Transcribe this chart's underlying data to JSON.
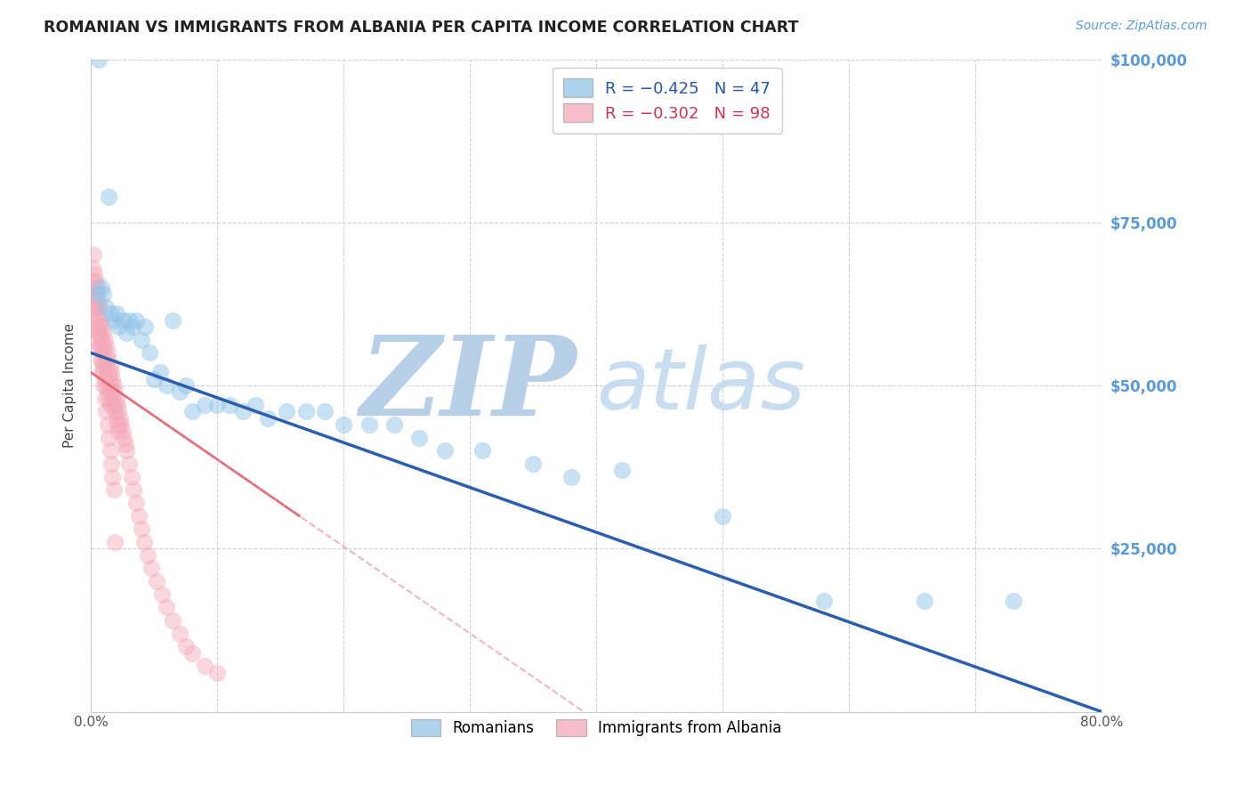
{
  "title": "ROMANIAN VS IMMIGRANTS FROM ALBANIA PER CAPITA INCOME CORRELATION CHART",
  "source": "Source: ZipAtlas.com",
  "ylabel": "Per Capita Income",
  "xlim": [
    0,
    0.8
  ],
  "ylim": [
    0,
    100000
  ],
  "yticks": [
    0,
    25000,
    50000,
    75000,
    100000
  ],
  "ytick_labels": [
    "",
    "$25,000",
    "$50,000",
    "$75,000",
    "$100,000"
  ],
  "xtick_labels": [
    "0.0%",
    "",
    "",
    "",
    "",
    "",
    "",
    "",
    "80.0%"
  ],
  "legend_r_blue": "R = −0.425",
  "legend_n_blue": "N = 47",
  "legend_r_pink": "R = −0.302",
  "legend_n_pink": "N = 98",
  "blue_color": "#92c5e8",
  "pink_color": "#f4a8b8",
  "blue_line_color": "#2b5fad",
  "pink_line_color": "#e06070",
  "grid_color": "#cccccc",
  "background_color": "#ffffff",
  "title_color": "#222222",
  "right_ytick_color": "#5b9bd5",
  "watermark_color": "#c8ddf0",
  "blue_points_x": [
    0.006,
    0.014,
    0.005,
    0.008,
    0.01,
    0.012,
    0.016,
    0.018,
    0.02,
    0.022,
    0.025,
    0.028,
    0.03,
    0.033,
    0.036,
    0.04,
    0.043,
    0.046,
    0.05,
    0.055,
    0.06,
    0.065,
    0.07,
    0.075,
    0.08,
    0.09,
    0.1,
    0.11,
    0.12,
    0.13,
    0.14,
    0.155,
    0.17,
    0.185,
    0.2,
    0.22,
    0.24,
    0.26,
    0.28,
    0.31,
    0.35,
    0.38,
    0.42,
    0.5,
    0.58,
    0.66,
    0.73
  ],
  "blue_points_y": [
    100000,
    79000,
    64000,
    65000,
    64000,
    62000,
    61000,
    60000,
    61000,
    59000,
    60000,
    58000,
    60000,
    59000,
    60000,
    57000,
    59000,
    55000,
    51000,
    52000,
    50000,
    60000,
    49000,
    50000,
    46000,
    47000,
    47000,
    47000,
    46000,
    47000,
    45000,
    46000,
    46000,
    46000,
    44000,
    44000,
    44000,
    42000,
    40000,
    40000,
    38000,
    36000,
    37000,
    30000,
    17000,
    17000,
    17000
  ],
  "pink_points_x": [
    0.001,
    0.002,
    0.002,
    0.003,
    0.003,
    0.003,
    0.004,
    0.004,
    0.004,
    0.005,
    0.005,
    0.005,
    0.005,
    0.006,
    0.006,
    0.006,
    0.007,
    0.007,
    0.007,
    0.008,
    0.008,
    0.008,
    0.009,
    0.009,
    0.009,
    0.01,
    0.01,
    0.01,
    0.011,
    0.011,
    0.011,
    0.012,
    0.012,
    0.012,
    0.013,
    0.013,
    0.013,
    0.014,
    0.014,
    0.014,
    0.015,
    0.015,
    0.015,
    0.016,
    0.016,
    0.017,
    0.017,
    0.018,
    0.018,
    0.019,
    0.019,
    0.02,
    0.02,
    0.021,
    0.021,
    0.022,
    0.022,
    0.023,
    0.024,
    0.025,
    0.026,
    0.027,
    0.028,
    0.03,
    0.032,
    0.034,
    0.036,
    0.038,
    0.04,
    0.042,
    0.045,
    0.048,
    0.052,
    0.056,
    0.06,
    0.065,
    0.07,
    0.075,
    0.08,
    0.09,
    0.1,
    0.002,
    0.003,
    0.004,
    0.005,
    0.006,
    0.007,
    0.008,
    0.009,
    0.01,
    0.011,
    0.012,
    0.013,
    0.014,
    0.015,
    0.016,
    0.017,
    0.018,
    0.019
  ],
  "pink_points_y": [
    68000,
    70000,
    65000,
    67000,
    64000,
    62000,
    66000,
    63000,
    60000,
    65000,
    62000,
    59000,
    57000,
    63000,
    61000,
    58000,
    62000,
    59000,
    56000,
    60000,
    57000,
    54000,
    59000,
    56000,
    53000,
    58000,
    55000,
    52000,
    57000,
    54000,
    51000,
    56000,
    53000,
    50000,
    55000,
    52000,
    49000,
    54000,
    51000,
    48000,
    53000,
    50000,
    47000,
    52000,
    49000,
    51000,
    48000,
    50000,
    47000,
    49000,
    46000,
    48000,
    45000,
    47000,
    44000,
    46000,
    43000,
    45000,
    44000,
    43000,
    42000,
    41000,
    40000,
    38000,
    36000,
    34000,
    32000,
    30000,
    28000,
    26000,
    24000,
    22000,
    20000,
    18000,
    16000,
    14000,
    12000,
    10000,
    9000,
    7000,
    6000,
    66000,
    64000,
    62000,
    60000,
    58000,
    56000,
    54000,
    52000,
    50000,
    48000,
    46000,
    44000,
    42000,
    40000,
    38000,
    36000,
    34000,
    26000
  ],
  "blue_line_x": [
    0.0,
    0.8
  ],
  "blue_line_y": [
    55000,
    0
  ],
  "pink_line_x": [
    0.0,
    0.165
  ],
  "pink_line_y": [
    52000,
    30000
  ],
  "figsize": [
    14.06,
    8.92
  ],
  "dpi": 100
}
